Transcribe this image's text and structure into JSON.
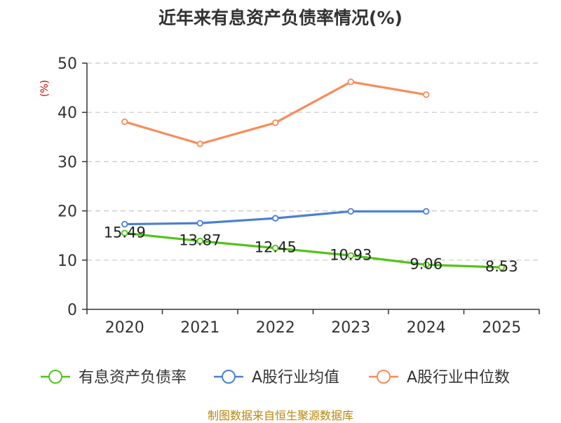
{
  "title": "近年来有息资产负债率情况(%)",
  "source": "制图数据来自恒生聚源数据库",
  "chart_data": {
    "type": "line",
    "title": "近年来有息资产负债率情况(%)",
    "xlabel": "",
    "ylabel": "(%)",
    "categories": [
      "2020",
      "2021",
      "2022",
      "2023",
      "2024",
      "2025"
    ],
    "ylim": [
      0,
      50
    ],
    "yticks": [
      0,
      10,
      20,
      30,
      40,
      50
    ],
    "grid": true,
    "legend_position": "bottom",
    "series": [
      {
        "name": "有息资产负债率",
        "color": "#52c41a",
        "values": [
          15.49,
          13.87,
          12.45,
          10.93,
          9.06,
          8.53
        ],
        "labels": [
          "15.49",
          "13.87",
          "12.45",
          "10.93",
          "9.06",
          "8.53"
        ]
      },
      {
        "name": "A股行业均值",
        "color": "#4a7fd4",
        "values": [
          17.3,
          17.5,
          18.5,
          19.9,
          19.9,
          null
        ]
      },
      {
        "name": "A股行业中位数",
        "color": "#f78c5a",
        "values": [
          38.1,
          33.6,
          37.9,
          46.2,
          43.6,
          null
        ]
      }
    ]
  }
}
